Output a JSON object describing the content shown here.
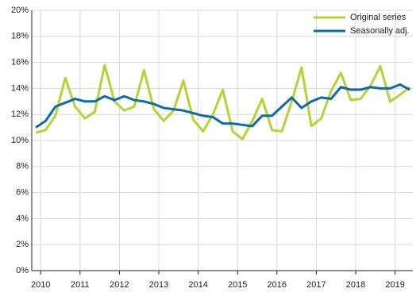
{
  "chart_data": {
    "type": "line",
    "categories": [
      "2010",
      null,
      null,
      null,
      "2011",
      null,
      null,
      null,
      "2012",
      null,
      null,
      null,
      "2013",
      null,
      null,
      null,
      "2014",
      null,
      null,
      null,
      "2015",
      null,
      null,
      null,
      "2016",
      null,
      null,
      null,
      "2017",
      null,
      null,
      null,
      "2018",
      null,
      null,
      null,
      "2019",
      null,
      null
    ],
    "series": [
      {
        "name": "Original series",
        "color": "#b5d334",
        "values": [
          10.6,
          10.8,
          11.9,
          14.8,
          12.6,
          11.7,
          12.2,
          15.8,
          13.0,
          12.3,
          12.6,
          15.4,
          12.4,
          11.5,
          12.3,
          14.6,
          11.6,
          10.7,
          12.0,
          13.9,
          10.7,
          10.1,
          11.5,
          13.2,
          10.8,
          10.7,
          13.0,
          15.6,
          11.1,
          11.7,
          13.8,
          15.2,
          13.1,
          13.2,
          14.2,
          15.7,
          13.0,
          13.5,
          14.1
        ]
      },
      {
        "name": "Seasonally adj.",
        "color": "#0d6aa8",
        "values": [
          11.0,
          11.5,
          12.6,
          12.9,
          13.2,
          13.0,
          13.0,
          13.4,
          13.1,
          13.4,
          13.1,
          13.0,
          12.8,
          12.5,
          12.4,
          12.3,
          12.1,
          11.9,
          11.8,
          11.3,
          11.3,
          11.2,
          11.1,
          11.9,
          11.9,
          12.6,
          13.3,
          12.5,
          13.0,
          13.3,
          13.2,
          14.1,
          13.9,
          13.9,
          14.1,
          14.0,
          14.0,
          14.3,
          13.9
        ]
      }
    ],
    "ylim": [
      0,
      20
    ],
    "yticks": [
      {
        "value": 0,
        "label": "0%"
      },
      {
        "value": 2,
        "label": "2%"
      },
      {
        "value": 4,
        "label": "4%"
      },
      {
        "value": 6,
        "label": "6%"
      },
      {
        "value": 8,
        "label": "8%"
      },
      {
        "value": 10,
        "label": "10%"
      },
      {
        "value": 12,
        "label": "12%"
      },
      {
        "value": 14,
        "label": "14%"
      },
      {
        "value": 16,
        "label": "16%"
      },
      {
        "value": 18,
        "label": "18%"
      },
      {
        "value": 20,
        "label": "20%"
      }
    ],
    "grid": true,
    "legend": "top-right"
  }
}
